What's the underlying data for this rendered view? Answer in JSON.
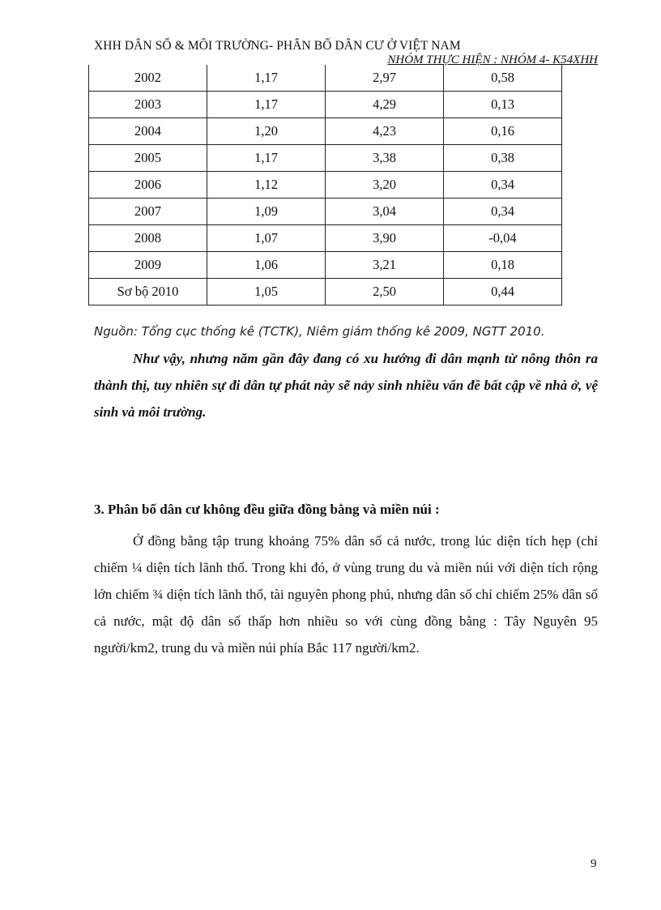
{
  "header": {
    "title": "XHH DÂN SỐ & MÔI TRƯỜNG- PHÂN BỐ DÂN CƯ Ở VIỆT NAM",
    "subtitle": "NHÓM THỰC HIỆN : NHÓM 4- K54XHH"
  },
  "table": {
    "rows": [
      [
        "2002",
        "1,17",
        "2,97",
        "0,58"
      ],
      [
        "2003",
        "1,17",
        "4,29",
        "0,13"
      ],
      [
        "2004",
        "1,20",
        "4,23",
        "0,16"
      ],
      [
        "2005",
        "1,17",
        "3,38",
        "0,38"
      ],
      [
        "2006",
        "1,12",
        "3,20",
        "0,34"
      ],
      [
        "2007",
        "1,09",
        "3,04",
        "0,34"
      ],
      [
        "2008",
        "1,07",
        "3,90",
        "-0,04"
      ],
      [
        "2009",
        "1,06",
        "3,21",
        "0,18"
      ],
      [
        "Sơ bộ 2010",
        "1,05",
        "2,50",
        "0,44"
      ]
    ]
  },
  "source": "Nguồn: Tổng cục thống kê (TCTK), Niêm giám thống kê 2009, NGTT 2010.",
  "conclusion": "Như vậy, nhưng năm gần đây đang có xu hướng đi dân mạnh từ nông thôn ra thành thị, tuy nhiên sự đi dân tự phát này sẽ nảy sinh nhiều vấn đề bất cập về nhà ở, vệ sinh và môi trường.",
  "section3": {
    "heading": "3. Phân bố dân cư không đều giữa đồng bằng và miền núi :",
    "body": "Ở đồng bằng tập trung khoảng 75% dân số cả nước, trong lúc diện tích hẹp (chỉ chiếm ¼ diện tích lãnh thổ. Trong khi đó, ở vùng trung du và miền núi với diện tích rộng lớn chiếm ¾ diện tích lãnh thổ, tài nguyên phong phú, nhưng dân số chỉ chiếm 25% dân số cả nước, mật độ dân số thấp hơn nhiều so với cùng đồng bằng : Tây Nguyên 95 người/km2, trung du và miền núi phía Bắc 117 người/km2."
  },
  "page_number": "9"
}
